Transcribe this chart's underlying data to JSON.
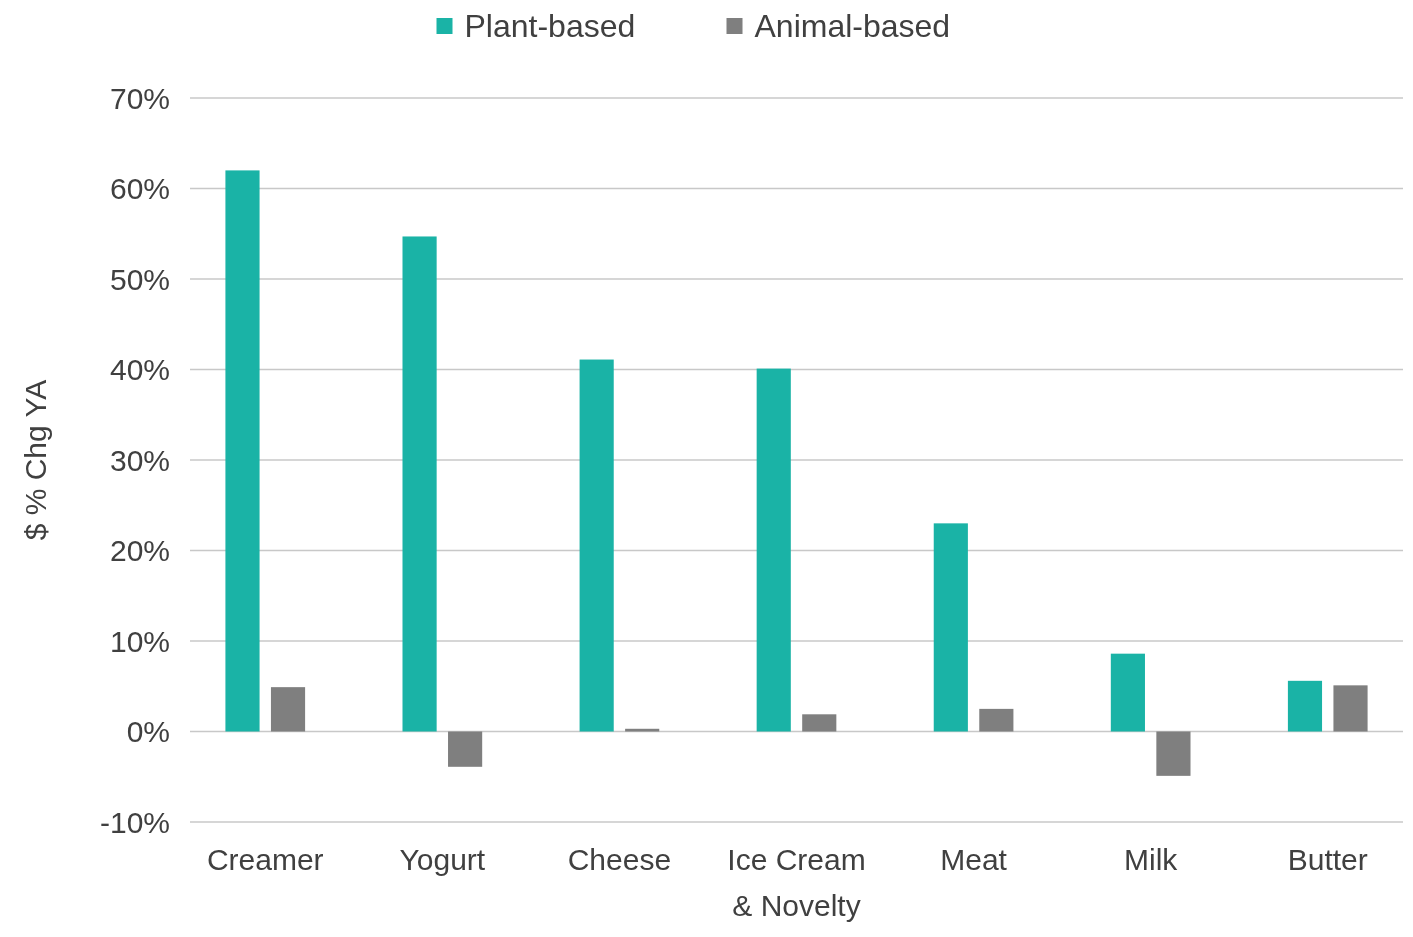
{
  "chart_data": {
    "type": "bar",
    "ylabel": "$ % Chg YA",
    "categories": [
      "Creamer",
      "Yogurt",
      "Cheese",
      "Ice Cream & Novelty",
      "Meat",
      "Milk",
      "Butter"
    ],
    "series": [
      {
        "name": "Plant-based",
        "color": "#1ab3a6",
        "values": [
          62,
          54.7,
          41.1,
          40.1,
          23,
          8.6,
          5.6
        ]
      },
      {
        "name": "Animal-based",
        "color": "#7f7f7f",
        "values": [
          4.9,
          -3.9,
          0.3,
          1.9,
          2.5,
          -4.9,
          5.1
        ]
      }
    ],
    "ylim": [
      -10,
      70
    ],
    "yticks": [
      {
        "value": -10,
        "label": "-10%"
      },
      {
        "value": 0,
        "label": "0%"
      },
      {
        "value": 10,
        "label": "10%"
      },
      {
        "value": 20,
        "label": "20%"
      },
      {
        "value": 30,
        "label": "30%"
      },
      {
        "value": 40,
        "label": "40%"
      },
      {
        "value": 50,
        "label": "50%"
      },
      {
        "value": 60,
        "label": "60%"
      },
      {
        "value": 70,
        "label": "70%"
      }
    ],
    "grid": "y",
    "legend": "top"
  }
}
